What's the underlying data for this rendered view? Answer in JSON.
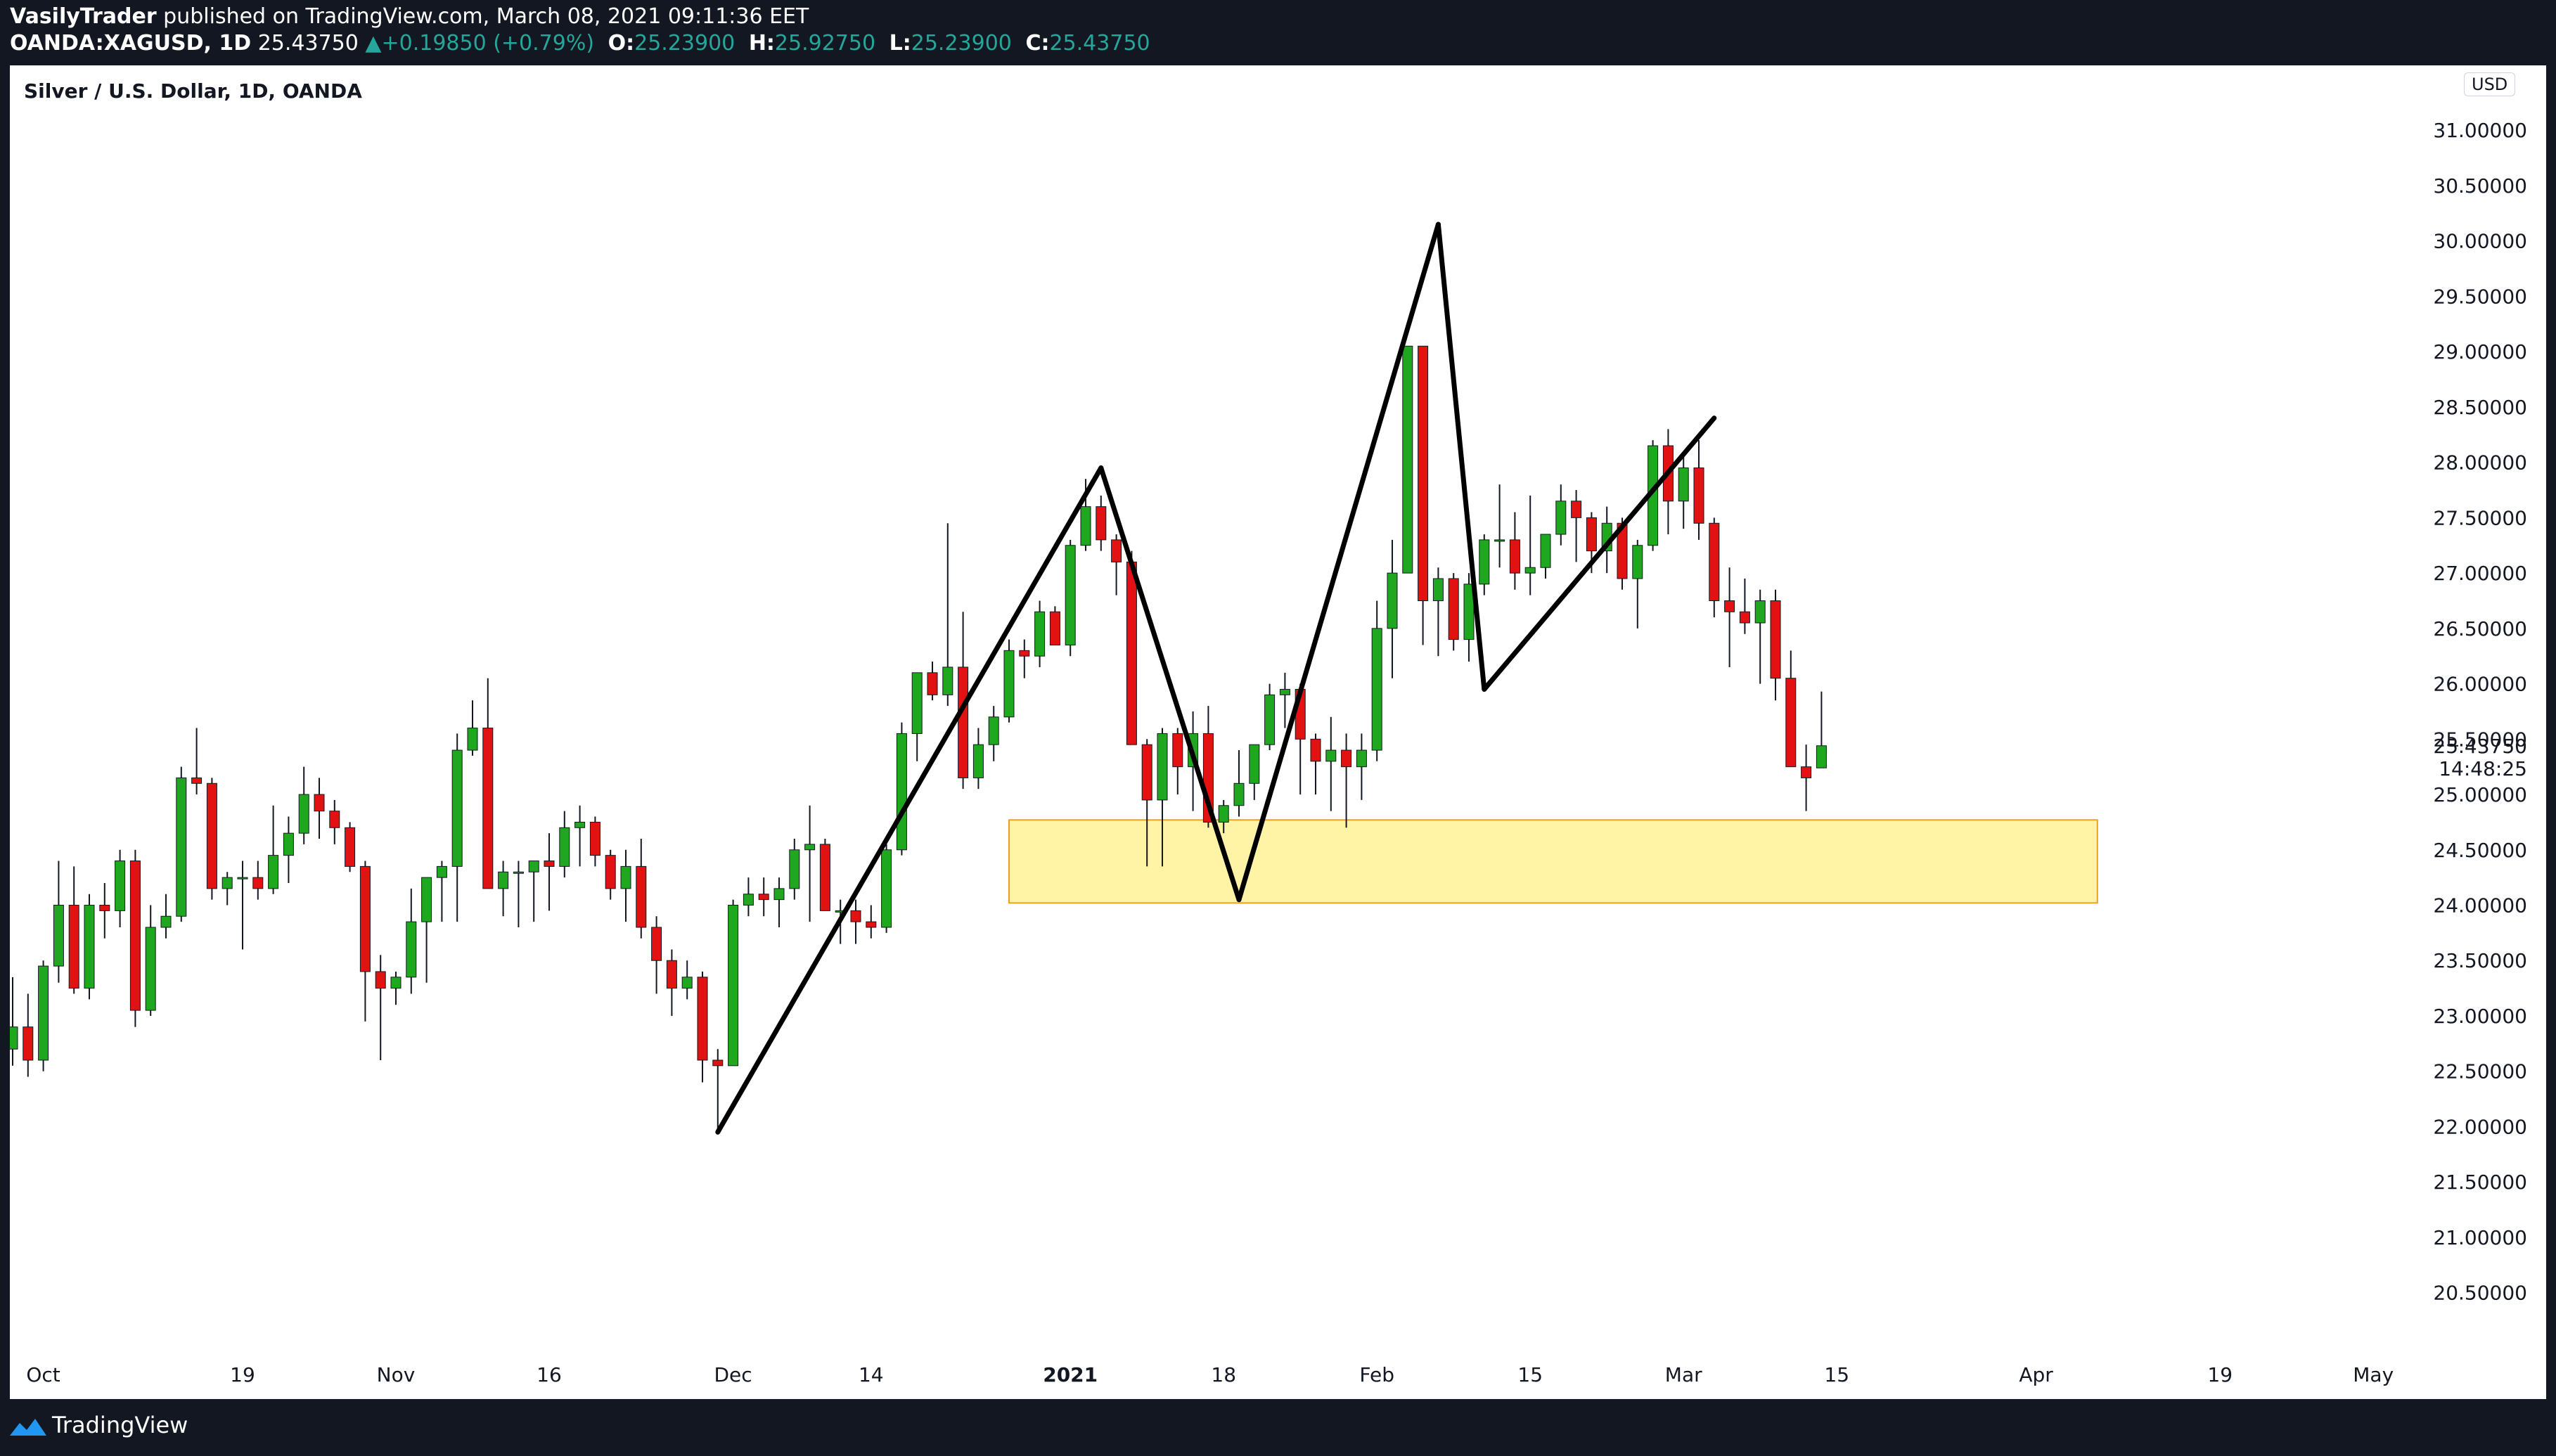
{
  "header": {
    "author": "VasilyTrader",
    "published_text": "published on TradingView.com, March 08, 2021 09:11:36 EET",
    "symbol": "OANDA:XAGUSD, 1D",
    "last_price": "25.43750",
    "change_arrow": "▲",
    "change": "+0.19850 (+0.79%)",
    "open_label": "O:",
    "open": "25.23900",
    "high_label": "H:",
    "high": "25.92750",
    "low_label": "L:",
    "low": "25.23900",
    "close_label": "C:",
    "close": "25.43750"
  },
  "chart_title": "Silver / U.S. Dollar, 1D, OANDA",
  "currency_badge": "USD",
  "footer": {
    "brand": "TradingView"
  },
  "colors": {
    "up": "#1fa81f",
    "down": "#e31212",
    "zone_fill": "#fff3a6",
    "zone_border": "#f0a020",
    "pattern": "#000000",
    "background": "#131722"
  },
  "icons": {
    "footer_logo": "tradingview-logo-icon"
  },
  "chart_data": {
    "type": "candlestick",
    "title": "Silver / U.S. Dollar, 1D, OANDA",
    "y_axis": {
      "range": [
        20.25,
        31.3
      ],
      "ticks": [
        "20.50000",
        "21.00000",
        "21.50000",
        "22.00000",
        "22.50000",
        "23.00000",
        "23.50000",
        "24.00000",
        "24.50000",
        "25.00000",
        "25.50000",
        "26.00000",
        "26.50000",
        "27.00000",
        "27.50000",
        "28.00000",
        "28.50000",
        "29.00000",
        "29.50000",
        "30.00000",
        "30.50000",
        "31.00000"
      ],
      "last_value_label": "25.43750",
      "countdown_label": "14:48:25"
    },
    "x_axis": {
      "ticks": [
        {
          "label": "Oct",
          "index": 2
        },
        {
          "label": "19",
          "index": 15
        },
        {
          "label": "Nov",
          "index": 25
        },
        {
          "label": "16",
          "index": 35
        },
        {
          "label": "Dec",
          "index": 47
        },
        {
          "label": "14",
          "index": 56
        },
        {
          "label": "2021",
          "index": 69
        },
        {
          "label": "18",
          "index": 79
        },
        {
          "label": "Feb",
          "index": 89
        },
        {
          "label": "15",
          "index": 99
        },
        {
          "label": "Mar",
          "index": 109
        },
        {
          "label": "15",
          "index": 119
        },
        {
          "label": "Apr",
          "index": 132
        },
        {
          "label": "19",
          "index": 144
        },
        {
          "label": "May",
          "index": 154
        }
      ]
    },
    "candles": [
      {
        "o": 22.7,
        "h": 23.35,
        "l": 22.55,
        "c": 22.9
      },
      {
        "o": 22.9,
        "h": 23.2,
        "l": 22.45,
        "c": 22.6
      },
      {
        "o": 22.6,
        "h": 23.5,
        "l": 22.5,
        "c": 23.45
      },
      {
        "o": 23.45,
        "h": 24.4,
        "l": 23.3,
        "c": 24.0
      },
      {
        "o": 24.0,
        "h": 24.35,
        "l": 23.2,
        "c": 23.25
      },
      {
        "o": 23.25,
        "h": 24.1,
        "l": 23.15,
        "c": 24.0
      },
      {
        "o": 24.0,
        "h": 24.2,
        "l": 23.7,
        "c": 23.95
      },
      {
        "o": 23.95,
        "h": 24.5,
        "l": 23.8,
        "c": 24.4
      },
      {
        "o": 24.4,
        "h": 24.5,
        "l": 22.9,
        "c": 23.05
      },
      {
        "o": 23.05,
        "h": 24.0,
        "l": 23.0,
        "c": 23.8
      },
      {
        "o": 23.8,
        "h": 24.1,
        "l": 23.7,
        "c": 23.9
      },
      {
        "o": 23.9,
        "h": 25.25,
        "l": 23.85,
        "c": 25.15
      },
      {
        "o": 25.15,
        "h": 25.6,
        "l": 25.0,
        "c": 25.1
      },
      {
        "o": 25.1,
        "h": 25.15,
        "l": 24.05,
        "c": 24.15
      },
      {
        "o": 24.15,
        "h": 24.3,
        "l": 24.0,
        "c": 24.25
      },
      {
        "o": 24.25,
        "h": 24.4,
        "l": 23.6,
        "c": 24.25
      },
      {
        "o": 24.25,
        "h": 24.4,
        "l": 24.05,
        "c": 24.15
      },
      {
        "o": 24.15,
        "h": 24.9,
        "l": 24.1,
        "c": 24.45
      },
      {
        "o": 24.45,
        "h": 24.8,
        "l": 24.2,
        "c": 24.65
      },
      {
        "o": 24.65,
        "h": 25.25,
        "l": 24.55,
        "c": 25.0
      },
      {
        "o": 25.0,
        "h": 25.15,
        "l": 24.6,
        "c": 24.85
      },
      {
        "o": 24.85,
        "h": 24.95,
        "l": 24.55,
        "c": 24.7
      },
      {
        "o": 24.7,
        "h": 24.75,
        "l": 24.3,
        "c": 24.35
      },
      {
        "o": 24.35,
        "h": 24.4,
        "l": 22.95,
        "c": 23.4
      },
      {
        "o": 23.4,
        "h": 23.55,
        "l": 22.6,
        "c": 23.25
      },
      {
        "o": 23.25,
        "h": 23.4,
        "l": 23.1,
        "c": 23.35
      },
      {
        "o": 23.35,
        "h": 24.15,
        "l": 23.2,
        "c": 23.85
      },
      {
        "o": 23.85,
        "h": 24.2,
        "l": 23.3,
        "c": 24.25
      },
      {
        "o": 24.25,
        "h": 24.4,
        "l": 23.85,
        "c": 24.35
      },
      {
        "o": 24.35,
        "h": 25.55,
        "l": 23.85,
        "c": 25.4
      },
      {
        "o": 25.4,
        "h": 25.85,
        "l": 25.35,
        "c": 25.6
      },
      {
        "o": 25.6,
        "h": 26.05,
        "l": 24.2,
        "c": 24.15
      },
      {
        "o": 24.15,
        "h": 24.4,
        "l": 23.9,
        "c": 24.3
      },
      {
        "o": 24.3,
        "h": 24.4,
        "l": 23.8,
        "c": 24.3
      },
      {
        "o": 24.3,
        "h": 24.4,
        "l": 23.85,
        "c": 24.4
      },
      {
        "o": 24.4,
        "h": 24.65,
        "l": 23.95,
        "c": 24.35
      },
      {
        "o": 24.35,
        "h": 24.85,
        "l": 24.25,
        "c": 24.7
      },
      {
        "o": 24.7,
        "h": 24.9,
        "l": 24.35,
        "c": 24.75
      },
      {
        "o": 24.75,
        "h": 24.8,
        "l": 24.35,
        "c": 24.45
      },
      {
        "o": 24.45,
        "h": 24.5,
        "l": 24.05,
        "c": 24.15
      },
      {
        "o": 24.15,
        "h": 24.5,
        "l": 23.85,
        "c": 24.35
      },
      {
        "o": 24.35,
        "h": 24.6,
        "l": 23.7,
        "c": 23.8
      },
      {
        "o": 23.8,
        "h": 23.9,
        "l": 23.2,
        "c": 23.5
      },
      {
        "o": 23.5,
        "h": 23.6,
        "l": 23.0,
        "c": 23.25
      },
      {
        "o": 23.25,
        "h": 23.5,
        "l": 23.15,
        "c": 23.35
      },
      {
        "o": 23.35,
        "h": 23.4,
        "l": 22.4,
        "c": 22.6
      },
      {
        "o": 22.6,
        "h": 22.7,
        "l": 21.95,
        "c": 22.55
      },
      {
        "o": 22.55,
        "h": 24.05,
        "l": 22.55,
        "c": 24.0
      },
      {
        "o": 24.0,
        "h": 24.25,
        "l": 23.9,
        "c": 24.1
      },
      {
        "o": 24.1,
        "h": 24.25,
        "l": 23.9,
        "c": 24.05
      },
      {
        "o": 24.05,
        "h": 24.25,
        "l": 23.8,
        "c": 24.15
      },
      {
        "o": 24.15,
        "h": 24.6,
        "l": 24.05,
        "c": 24.5
      },
      {
        "o": 24.5,
        "h": 24.9,
        "l": 23.85,
        "c": 24.55
      },
      {
        "o": 24.55,
        "h": 24.6,
        "l": 23.95,
        "c": 23.95
      },
      {
        "o": 23.95,
        "h": 24.05,
        "l": 23.65,
        "c": 23.95
      },
      {
        "o": 23.95,
        "h": 24.05,
        "l": 23.65,
        "c": 23.85
      },
      {
        "o": 23.85,
        "h": 24.0,
        "l": 23.7,
        "c": 23.8
      },
      {
        "o": 23.8,
        "h": 24.55,
        "l": 23.75,
        "c": 24.5
      },
      {
        "o": 24.5,
        "h": 25.65,
        "l": 24.45,
        "c": 25.55
      },
      {
        "o": 25.55,
        "h": 26.1,
        "l": 25.3,
        "c": 26.1
      },
      {
        "o": 26.1,
        "h": 26.2,
        "l": 25.85,
        "c": 25.9
      },
      {
        "o": 25.9,
        "h": 27.45,
        "l": 25.8,
        "c": 26.15
      },
      {
        "o": 26.15,
        "h": 26.65,
        "l": 25.05,
        "c": 25.15
      },
      {
        "o": 25.15,
        "h": 25.6,
        "l": 25.05,
        "c": 25.45
      },
      {
        "o": 25.45,
        "h": 25.8,
        "l": 25.3,
        "c": 25.7
      },
      {
        "o": 25.7,
        "h": 26.4,
        "l": 25.65,
        "c": 26.3
      },
      {
        "o": 26.3,
        "h": 26.4,
        "l": 26.05,
        "c": 26.25
      },
      {
        "o": 26.25,
        "h": 26.75,
        "l": 26.15,
        "c": 26.65
      },
      {
        "o": 26.65,
        "h": 26.7,
        "l": 26.35,
        "c": 26.35
      },
      {
        "o": 26.35,
        "h": 27.3,
        "l": 26.25,
        "c": 27.25
      },
      {
        "o": 27.25,
        "h": 27.85,
        "l": 27.2,
        "c": 27.6
      },
      {
        "o": 27.6,
        "h": 27.7,
        "l": 27.2,
        "c": 27.3
      },
      {
        "o": 27.3,
        "h": 27.35,
        "l": 26.8,
        "c": 27.1
      },
      {
        "o": 27.1,
        "h": 27.2,
        "l": 25.5,
        "c": 25.45
      },
      {
        "o": 25.45,
        "h": 25.5,
        "l": 24.35,
        "c": 24.95
      },
      {
        "o": 24.95,
        "h": 25.6,
        "l": 24.35,
        "c": 25.55
      },
      {
        "o": 25.55,
        "h": 25.6,
        "l": 25.0,
        "c": 25.25
      },
      {
        "o": 25.25,
        "h": 25.75,
        "l": 24.85,
        "c": 25.55
      },
      {
        "o": 25.55,
        "h": 25.8,
        "l": 24.7,
        "c": 24.75
      },
      {
        "o": 24.75,
        "h": 24.95,
        "l": 24.65,
        "c": 24.9
      },
      {
        "o": 24.9,
        "h": 25.4,
        "l": 24.8,
        "c": 25.1
      },
      {
        "o": 25.1,
        "h": 25.4,
        "l": 24.95,
        "c": 25.45
      },
      {
        "o": 25.45,
        "h": 26.0,
        "l": 25.4,
        "c": 25.9
      },
      {
        "o": 25.9,
        "h": 26.1,
        "l": 25.6,
        "c": 25.95
      },
      {
        "o": 25.95,
        "h": 26.0,
        "l": 25.0,
        "c": 25.5
      },
      {
        "o": 25.5,
        "h": 25.55,
        "l": 25.0,
        "c": 25.3
      },
      {
        "o": 25.3,
        "h": 25.7,
        "l": 24.85,
        "c": 25.4
      },
      {
        "o": 25.4,
        "h": 25.55,
        "l": 24.7,
        "c": 25.25
      },
      {
        "o": 25.25,
        "h": 25.55,
        "l": 24.95,
        "c": 25.4
      },
      {
        "o": 25.4,
        "h": 26.75,
        "l": 25.3,
        "c": 26.5
      },
      {
        "o": 26.5,
        "h": 27.3,
        "l": 26.05,
        "c": 27.0
      },
      {
        "o": 27.0,
        "h": 29.05,
        "l": 27.0,
        "c": 29.05
      },
      {
        "o": 29.05,
        "h": 29.05,
        "l": 26.35,
        "c": 26.75
      },
      {
        "o": 26.75,
        "h": 27.05,
        "l": 26.25,
        "c": 26.95
      },
      {
        "o": 26.95,
        "h": 27.0,
        "l": 26.3,
        "c": 26.4
      },
      {
        "o": 26.4,
        "h": 27.0,
        "l": 26.2,
        "c": 26.9
      },
      {
        "o": 26.9,
        "h": 27.35,
        "l": 26.8,
        "c": 27.3
      },
      {
        "o": 27.3,
        "h": 27.8,
        "l": 27.05,
        "c": 27.3
      },
      {
        "o": 27.3,
        "h": 27.55,
        "l": 26.85,
        "c": 27.0
      },
      {
        "o": 27.0,
        "h": 27.7,
        "l": 26.8,
        "c": 27.05
      },
      {
        "o": 27.05,
        "h": 27.35,
        "l": 26.95,
        "c": 27.35
      },
      {
        "o": 27.35,
        "h": 27.8,
        "l": 27.25,
        "c": 27.65
      },
      {
        "o": 27.65,
        "h": 27.75,
        "l": 27.1,
        "c": 27.5
      },
      {
        "o": 27.5,
        "h": 27.55,
        "l": 27.0,
        "c": 27.2
      },
      {
        "o": 27.2,
        "h": 27.6,
        "l": 27.0,
        "c": 27.45
      },
      {
        "o": 27.45,
        "h": 27.5,
        "l": 26.85,
        "c": 26.95
      },
      {
        "o": 26.95,
        "h": 27.3,
        "l": 26.5,
        "c": 27.25
      },
      {
        "o": 27.25,
        "h": 28.2,
        "l": 27.2,
        "c": 28.15
      },
      {
        "o": 28.15,
        "h": 28.3,
        "l": 27.35,
        "c": 27.65
      },
      {
        "o": 27.65,
        "h": 28.05,
        "l": 27.4,
        "c": 27.95
      },
      {
        "o": 27.95,
        "h": 28.2,
        "l": 27.3,
        "c": 27.45
      },
      {
        "o": 27.45,
        "h": 27.5,
        "l": 26.6,
        "c": 26.75
      },
      {
        "o": 26.75,
        "h": 27.05,
        "l": 26.15,
        "c": 26.65
      },
      {
        "o": 26.65,
        "h": 26.95,
        "l": 26.45,
        "c": 26.55
      },
      {
        "o": 26.55,
        "h": 26.85,
        "l": 26.0,
        "c": 26.75
      },
      {
        "o": 26.75,
        "h": 26.85,
        "l": 25.85,
        "c": 26.05
      },
      {
        "o": 26.05,
        "h": 26.3,
        "l": 25.25,
        "c": 25.25
      },
      {
        "o": 25.25,
        "h": 25.45,
        "l": 24.85,
        "c": 25.15
      },
      {
        "o": 25.24,
        "h": 25.93,
        "l": 25.24,
        "c": 25.44
      }
    ],
    "pattern_lines": [
      {
        "from": {
          "i": 46,
          "v": 21.95
        },
        "to": {
          "i": 71,
          "v": 27.95
        }
      },
      {
        "from": {
          "i": 71,
          "v": 27.95
        },
        "to": {
          "i": 80,
          "v": 24.05
        }
      },
      {
        "from": {
          "i": 80,
          "v": 24.05
        },
        "to": {
          "i": 93,
          "v": 30.15
        }
      },
      {
        "from": {
          "i": 93,
          "v": 30.15
        },
        "to": {
          "i": 96,
          "v": 25.95
        }
      },
      {
        "from": {
          "i": 96,
          "v": 25.95
        },
        "to": {
          "i": 111,
          "v": 28.4
        }
      }
    ],
    "support_zone": {
      "from_index": 65,
      "to_index": 136,
      "low": 24.02,
      "high": 24.77
    }
  }
}
